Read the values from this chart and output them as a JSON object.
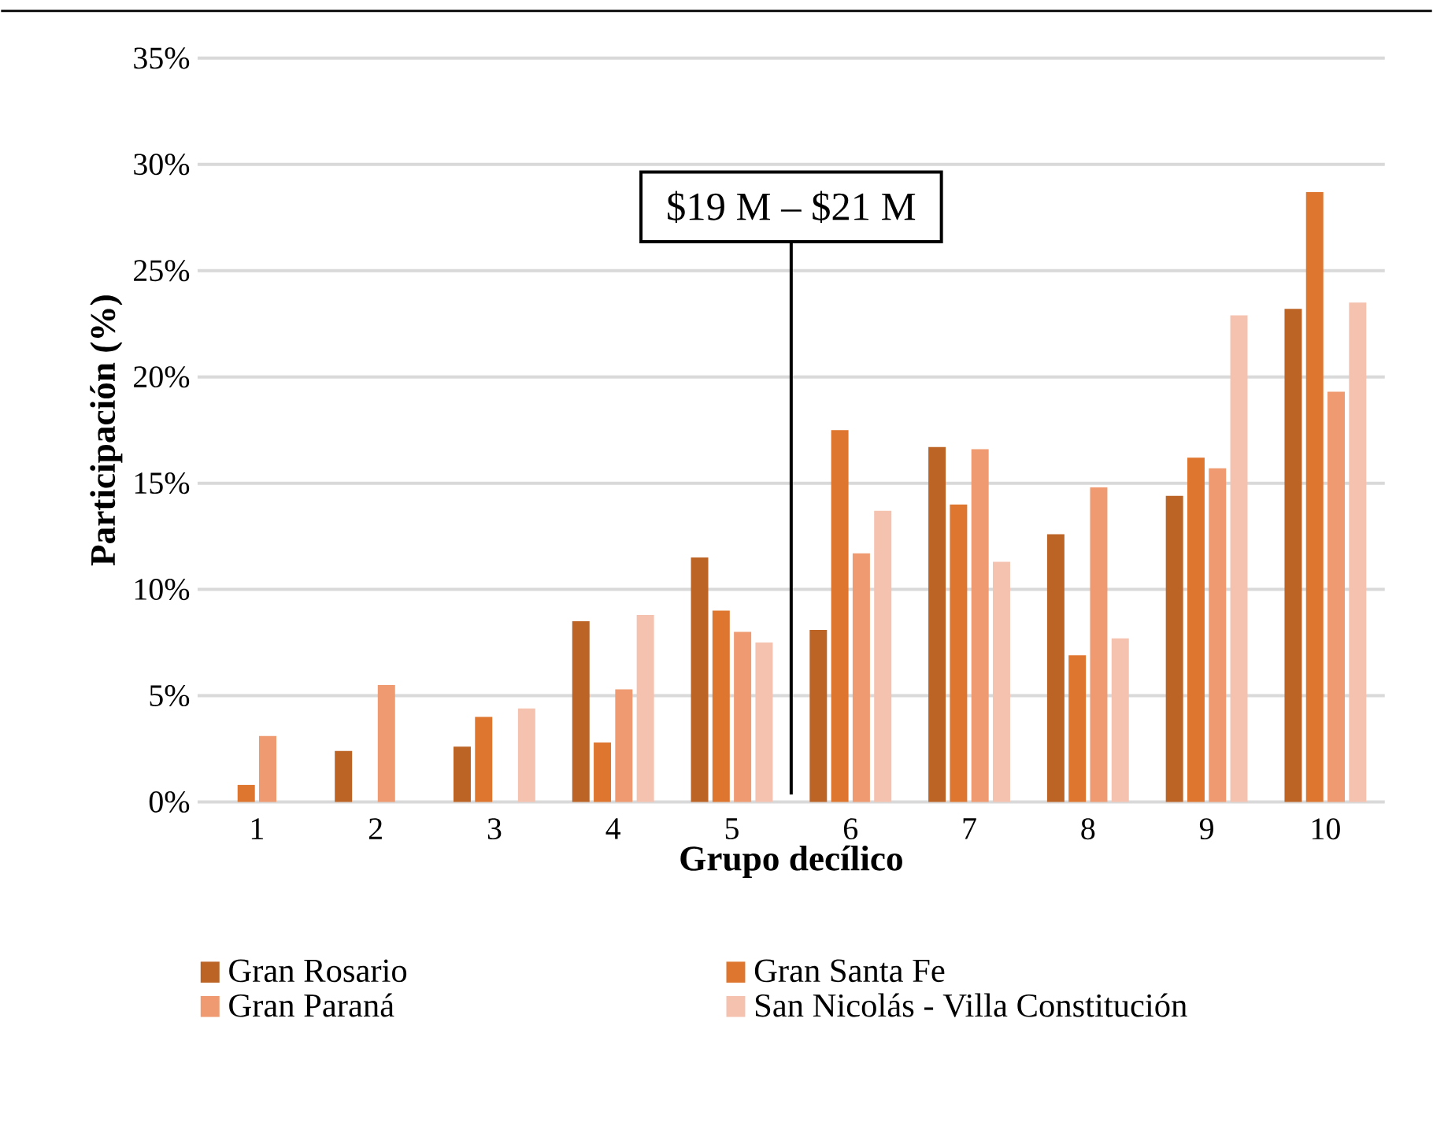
{
  "chart_data": {
    "type": "bar",
    "xlabel": "Grupo decílico",
    "ylabel": "Participación (%)",
    "x": [
      1,
      2,
      3,
      4,
      5,
      6,
      7,
      8,
      9,
      10
    ],
    "xlim": [
      0.5,
      10.5
    ],
    "xticks": [
      1,
      2,
      3,
      4,
      5,
      6,
      7,
      8,
      9,
      10
    ],
    "ylim": [
      0,
      35
    ],
    "yticks": [
      {
        "value": 0,
        "label": "0%"
      },
      {
        "value": 5,
        "label": "5%"
      },
      {
        "value": 10,
        "label": "10%"
      },
      {
        "value": 15,
        "label": "15%"
      },
      {
        "value": 20,
        "label": "20%"
      },
      {
        "value": 25,
        "label": "25%"
      },
      {
        "value": 30,
        "label": "30%"
      },
      {
        "value": 35,
        "label": "35%"
      }
    ],
    "grid": "y",
    "legend": "bottom",
    "series": [
      {
        "name": "Gran Rosario",
        "color": "#bc6326",
        "values": [
          null,
          2.4,
          2.6,
          8.5,
          11.5,
          8.1,
          16.7,
          12.6,
          14.4,
          23.2
        ]
      },
      {
        "name": "Gran Santa Fe",
        "color": "#df762f",
        "values": [
          0.8,
          null,
          4.0,
          2.8,
          9.0,
          17.5,
          14.0,
          6.9,
          16.2,
          28.7
        ]
      },
      {
        "name": "Gran Paraná",
        "color": "#ef9a70",
        "values": [
          3.1,
          5.5,
          null,
          5.3,
          8.0,
          11.7,
          16.6,
          14.8,
          15.7,
          19.3
        ]
      },
      {
        "name": "San Nicolás - Villa Constitución",
        "color": "#f5c2b0",
        "values": [
          null,
          null,
          4.4,
          8.8,
          7.5,
          13.7,
          11.3,
          7.7,
          22.9,
          23.5
        ]
      }
    ],
    "ref_lines": [
      {
        "axis": "x",
        "value": 5.5,
        "label": "$19 M – $21 M",
        "color": "#000000"
      }
    ]
  }
}
